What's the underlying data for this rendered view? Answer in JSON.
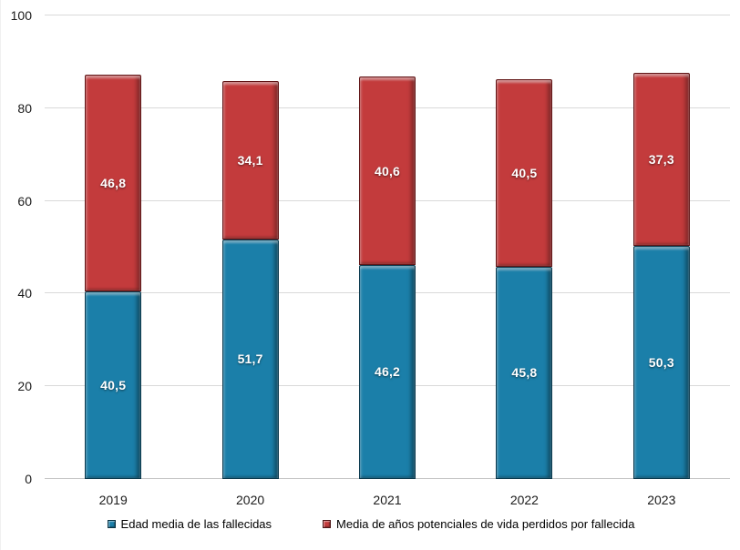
{
  "chart_data": {
    "type": "bar",
    "stacked": true,
    "title": "",
    "xlabel": "",
    "ylabel": "",
    "categories": [
      "2019",
      "2020",
      "2021",
      "2022",
      "2023"
    ],
    "series": [
      {
        "name": "Edad media de las fallecidas",
        "color": "#1b7fa9",
        "values": [
          40.5,
          51.7,
          46.2,
          45.8,
          50.3
        ],
        "labels": [
          "40,5",
          "51,7",
          "46,2",
          "45,8",
          "50,3"
        ]
      },
      {
        "name": "Media de años potenciales de vida perdidos por fallecida",
        "color": "#c33b3c",
        "values": [
          46.8,
          34.1,
          40.6,
          40.5,
          37.3
        ],
        "labels": [
          "46,8",
          "34,1",
          "40,6",
          "40,5",
          "37,3"
        ]
      }
    ],
    "totals": [
      87.3,
      85.8,
      86.8,
      86.3,
      87.6
    ],
    "ylim": [
      0,
      100
    ],
    "yticks": [
      0,
      20,
      40,
      60,
      80,
      100
    ],
    "grid": true,
    "legend_position": "bottom"
  },
  "colors": {
    "series_blue": "#1b7fa9",
    "series_red": "#c33b3c",
    "gridline": "#d9d9d9",
    "axis_line": "#c6c6c6",
    "tick_label": "#1a1a1a",
    "value_label": "#ffffff",
    "background": "#ffffff"
  }
}
